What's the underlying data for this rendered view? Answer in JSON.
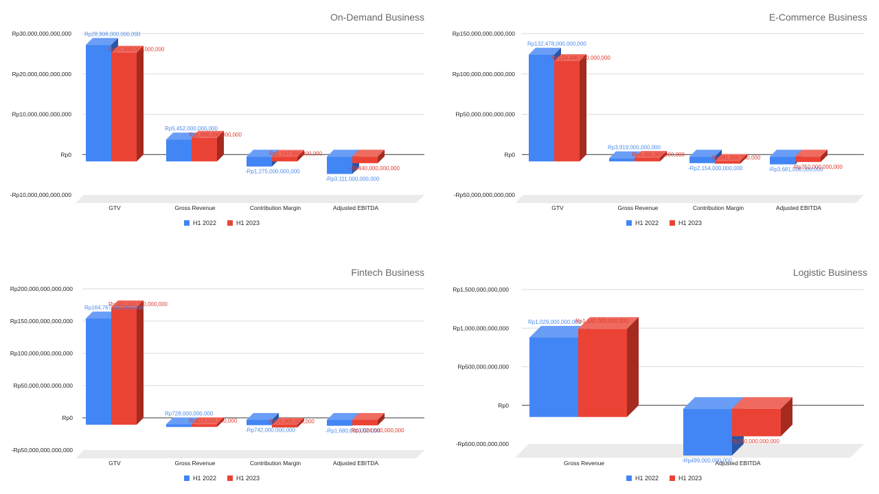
{
  "colors": {
    "h1_2022": "#4285F4",
    "h1_2022_side": "#2A56A3",
    "h1_2022_top": "#6A9DF6",
    "h1_2023": "#EA4335",
    "h1_2023_side": "#A52A20",
    "h1_2023_top": "#EF6B60",
    "label_2022": "#4A8AE8",
    "label_2023": "#E0392B"
  },
  "chart_data": [
    {
      "type": "bar",
      "title": "On-Demand Business",
      "categories": [
        "GTV",
        "Gross Revenue",
        "Contribution Margin",
        "Adjusted EBITDA"
      ],
      "series": [
        {
          "name": "H1 2022",
          "values": [
            28908000000000,
            5452000000000,
            -1275000000000,
            -3111000000000
          ],
          "labels": [
            "Rp28,908,000,000,000",
            "Rp5,452,000,000,000",
            "-Rp1,275,000,000,000",
            "-Rp3,111,000,000,000"
          ]
        },
        {
          "name": "H1 2023",
          "values": [
            26988000000000,
            5868000000000,
            1147000000000,
            -440000000000
          ],
          "labels": [
            "Rp26,988,000,000,000",
            "Rp5,868,000,000,000",
            "Rp1,147,000,000,000",
            "-Rp440,000,000,000"
          ]
        }
      ],
      "ylim": [
        -10000000000000,
        30000000000000
      ],
      "yticks": [
        30000000000000,
        20000000000000,
        10000000000000,
        0,
        -10000000000000
      ],
      "ytick_labels": [
        "Rp30,000,000,000,000",
        "Rp20,000,000,000,000",
        "Rp10,000,000,000,000",
        "Rp0",
        "-Rp10,000,000,000,000"
      ],
      "grid": true,
      "legend": "bottom"
    },
    {
      "type": "bar",
      "title": "E-Commerce Business",
      "categories": [
        "GTV",
        "Gross Revenue",
        "Contribution Margin",
        "Adjusted EBITDA"
      ],
      "series": [
        {
          "name": "H1 2022",
          "values": [
            132478000000000,
            3919000000000,
            -2154000000000,
            -3681000000000
          ],
          "labels": [
            "Rp132,478,000,000,000",
            "Rp3,919,000,000,000",
            "-Rp2,154,000,000,000",
            "-Rp3,681,000,000,000"
          ]
        },
        {
          "name": "H1 2023",
          "values": [
            124485000000000,
            4480000000000,
            591000000000,
            -752000000000
          ],
          "labels": [
            "Rp124,485,000,000,000",
            "Rp4,480,000,000,000",
            "Rp591,000,000,000",
            "-Rp752,000,000,000"
          ]
        }
      ],
      "ylim": [
        -50000000000000,
        150000000000000
      ],
      "yticks": [
        150000000000000,
        100000000000000,
        50000000000000,
        0,
        -50000000000000
      ],
      "ytick_labels": [
        "Rp150,000,000,000,000",
        "Rp100,000,000,000,000",
        "Rp50,000,000,000,000",
        "Rp0",
        "-Rp50,000,000,000,000"
      ],
      "grid": true,
      "legend": "bottom"
    },
    {
      "type": "bar",
      "title": "Fintech Business",
      "categories": [
        "GTV",
        "Gross Revenue",
        "Contribution Margin",
        "Adjusted EBITDA"
      ],
      "series": [
        {
          "name": "H1 2022",
          "values": [
            164767000000000,
            728000000000,
            -742000000000,
            -1680000000000
          ],
          "labels": [
            "Rp164,767,000,000,000",
            "Rp728,000,000,000",
            "-Rp742,000,000,000",
            "-Rp1,680,000,000,000"
          ]
        },
        {
          "name": "H1 2023",
          "values": [
            182003000000000,
            823000000000,
            15000000000,
            -1024000000000
          ],
          "labels": [
            "Rp182,003,000,000,000",
            "Rp823,000,000,000",
            "Rp15,000,000,000",
            "-Rp1,024,000,000,000"
          ]
        }
      ],
      "ylim": [
        -50000000000000,
        200000000000000
      ],
      "yticks": [
        200000000000000,
        150000000000000,
        100000000000000,
        50000000000000,
        0,
        -50000000000000
      ],
      "ytick_labels": [
        "Rp200,000,000,000,000",
        "Rp150,000,000,000,000",
        "Rp100,000,000,000,000",
        "Rp50,000,000,000,000",
        "Rp0",
        "-Rp50,000,000,000,000"
      ],
      "grid": true,
      "legend": "bottom"
    },
    {
      "type": "bar",
      "title": "Logistic Business",
      "categories": [
        "Gross Revenue",
        "Adjusted EBITDA"
      ],
      "series": [
        {
          "name": "H1 2022",
          "values": [
            1029000000000,
            -499000000000
          ],
          "labels": [
            "Rp1,029,000,000,000",
            "-Rp499,000,000,000"
          ]
        },
        {
          "name": "H1 2023",
          "values": [
            1142000000000,
            -250000000000
          ],
          "labels": [
            "Rp1,142,000,000,000",
            "-Rp250,000,000,000"
          ]
        }
      ],
      "ylim": [
        -500000000000,
        1500000000000
      ],
      "yticks": [
        1500000000000,
        1000000000000,
        500000000000,
        0,
        -500000000000
      ],
      "ytick_labels": [
        "Rp1,500,000,000,000",
        "Rp1,000,000,000,000",
        "Rp500,000,000,000",
        "Rp0",
        "-Rp500,000,000,000"
      ],
      "grid": true,
      "legend": "bottom"
    }
  ]
}
